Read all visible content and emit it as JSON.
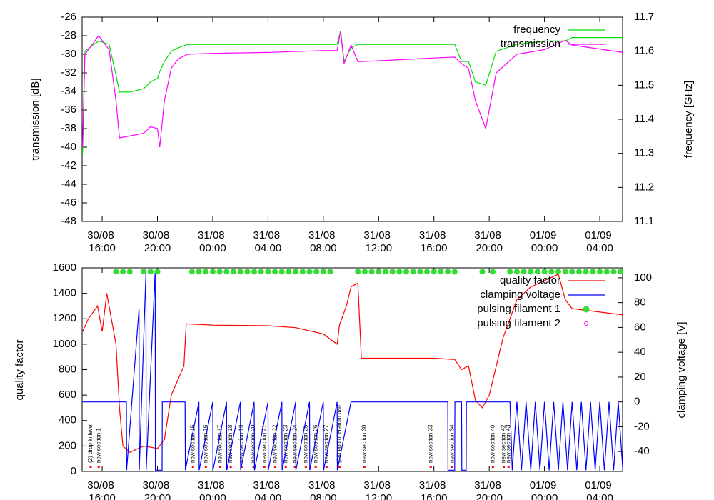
{
  "chart_data": [
    {
      "type": "line",
      "ylabel": "transmission [dB]",
      "y2label": "frequency [GHz]",
      "xlim": [
        "30/08 14:33",
        "01/09 05:39"
      ],
      "xticks": [
        "30/08 16:00",
        "30/08 20:00",
        "31/08 00:00",
        "31/08 04:00",
        "31/08 08:00",
        "31/08 12:00",
        "31/08 16:00",
        "31/08 20:00",
        "01/09 00:00",
        "01/09 04:00"
      ],
      "ylim": [
        -48,
        -26
      ],
      "yticks": [
        -48,
        -46,
        -44,
        -42,
        -40,
        -38,
        -36,
        -34,
        -32,
        -30,
        -28,
        -26
      ],
      "y2lim": [
        11.1,
        11.7
      ],
      "y2ticks": [
        11.1,
        11.2,
        11.3,
        11.4,
        11.5,
        11.6,
        11.7
      ],
      "legend": "top right",
      "x": [
        "30/08 14:35",
        "30/08 14:45",
        "30/08 15:45",
        "30/08 16:30",
        "30/08 17:00",
        "30/08 17:15",
        "30/08 18:00",
        "30/08 19:00",
        "30/08 19:30",
        "30/08 20:00",
        "30/08 20:10",
        "30/08 20:30",
        "30/08 21:00",
        "30/08 21:30",
        "30/08 22:10",
        "31/08 00:00",
        "31/08 04:00",
        "31/08 08:00",
        "31/08 09:00",
        "31/08 09:15",
        "31/08 09:30",
        "31/08 10:00",
        "31/08 10:30",
        "31/08 12:00",
        "31/08 16:00",
        "31/08 17:30",
        "31/08 18:00",
        "31/08 18:30",
        "31/08 19:00",
        "31/08 19:45",
        "31/08 20:30",
        "31/08 22:00",
        "01/09 00:00",
        "01/09 01:30",
        "01/09 02:00",
        "01/09 05:40"
      ],
      "series": [
        {
          "name": "frequency",
          "color": "#00e000",
          "axis": "y2",
          "mode": "line",
          "values": [
            11.3,
            11.6,
            11.63,
            11.62,
            11.53,
            11.48,
            11.48,
            11.49,
            11.51,
            11.52,
            11.54,
            11.57,
            11.6,
            11.61,
            11.62,
            11.62,
            11.62,
            11.62,
            11.62,
            11.66,
            11.57,
            11.61,
            11.62,
            11.62,
            11.62,
            11.62,
            11.57,
            11.57,
            11.51,
            11.5,
            11.6,
            11.62,
            11.63,
            11.63,
            11.64,
            11.64
          ]
        },
        {
          "name": "transmission",
          "color": "#ff00ff",
          "axis": "y",
          "mode": "line",
          "values": [
            -40,
            -30,
            -28,
            -29.5,
            -35,
            -39,
            -38.8,
            -38.5,
            -37.8,
            -38,
            -40,
            -35,
            -31.5,
            -30.5,
            -30,
            -29.9,
            -29.8,
            -29.6,
            -29.6,
            -27.5,
            -31,
            -29,
            -30.8,
            -30.7,
            -30.4,
            -30.3,
            -31,
            -31.5,
            -35,
            -38,
            -32,
            -30,
            -29.5,
            -28.5,
            -29,
            -29.8
          ]
        }
      ]
    },
    {
      "type": "line",
      "ylabel": "quality factor",
      "y2label": "clamping voltage [V]",
      "xlim": [
        "30/08 14:33",
        "01/09 05:39"
      ],
      "xticks": [
        "30/08 16:00",
        "30/08 20:00",
        "31/08 00:00",
        "31/08 04:00",
        "31/08 08:00",
        "31/08 12:00",
        "31/08 16:00",
        "31/08 20:00",
        "01/09 00:00",
        "01/09 04:00"
      ],
      "ylim": [
        0,
        1600
      ],
      "yticks": [
        0,
        200,
        400,
        600,
        800,
        1000,
        1200,
        1400,
        1600
      ],
      "y2lim": [
        -56,
        108
      ],
      "y2ticks": [
        -40,
        -20,
        0,
        20,
        40,
        60,
        80,
        100
      ],
      "legend": "top right",
      "series": [
        {
          "name": "quality factor",
          "color": "#ff0000",
          "axis": "y",
          "mode": "line",
          "x": [
            "30/08 14:35",
            "30/08 15:00",
            "30/08 15:40",
            "30/08 16:00",
            "30/08 16:20",
            "30/08 17:00",
            "30/08 17:15",
            "30/08 17:30",
            "30/08 18:00",
            "30/08 19:00",
            "30/08 20:00",
            "30/08 20:30",
            "30/08 21:00",
            "30/08 21:55",
            "30/08 22:05",
            "31/08 00:00",
            "31/08 04:00",
            "31/08 06:00",
            "31/08 08:00",
            "31/08 09:00",
            "31/08 09:10",
            "31/08 09:40",
            "31/08 10:00",
            "31/08 10:30",
            "31/08 10:45",
            "31/08 12:00",
            "31/08 16:00",
            "31/08 17:30",
            "31/08 18:00",
            "31/08 18:30",
            "31/08 19:00",
            "31/08 19:30",
            "31/08 20:00",
            "31/08 21:00",
            "31/08 22:00",
            "31/08 23:00",
            "01/09 00:00",
            "01/09 01:00",
            "01/09 01:30",
            "01/09 02:00",
            "01/09 05:40"
          ],
          "values": [
            1100,
            1200,
            1300,
            1100,
            1400,
            1000,
            500,
            200,
            150,
            200,
            180,
            250,
            600,
            830,
            1160,
            1150,
            1145,
            1130,
            1080,
            1000,
            1150,
            1300,
            1450,
            1480,
            890,
            890,
            890,
            880,
            800,
            830,
            560,
            500,
            600,
            1050,
            1350,
            1450,
            1500,
            1550,
            1350,
            1280,
            1230
          ]
        },
        {
          "name": "clamping voltage",
          "color": "#0000ff",
          "axis": "y2",
          "mode": "line",
          "x": [
            "30/08 14:35",
            "30/08 17:45",
            "30/08 17:46",
            "30/08 18:40",
            "30/08 18:41",
            "30/08 19:10",
            "30/08 19:11",
            "30/08 19:50",
            "30/08 19:51",
            "30/08 20:20",
            "30/08 20:21",
            "30/08 21:00",
            "30/08 22:00",
            "30/08 22:01",
            "30/08 23:00",
            "30/08 23:01",
            "31/08 00:00",
            "31/08 00:01",
            "31/08 01:00",
            "31/08 01:01",
            "31/08 02:00",
            "31/08 02:01",
            "31/08 03:00",
            "31/08 03:01",
            "31/08 04:00",
            "31/08 04:01",
            "31/08 05:00",
            "31/08 05:01",
            "31/08 06:00",
            "31/08 06:01",
            "31/08 07:00",
            "31/08 07:01",
            "31/08 08:00",
            "31/08 08:01",
            "31/08 09:00",
            "31/08 09:01",
            "31/08 10:00",
            "31/08 17:00",
            "31/08 17:01",
            "31/08 17:30",
            "31/08 17:31",
            "31/08 18:00",
            "31/08 18:01",
            "31/08 18:20",
            "31/08 18:21",
            "31/08 21:30",
            "31/08 21:40",
            "31/08 22:00",
            "31/08 22:20",
            "31/08 22:40",
            "31/08 23:00",
            "31/08 23:20",
            "31/08 23:40",
            "01/09 00:00",
            "01/09 00:20",
            "01/09 00:40",
            "01/09 01:00",
            "01/09 01:20",
            "01/09 01:40",
            "01/09 02:00",
            "01/09 02:20",
            "01/09 02:40",
            "01/09 03:00",
            "01/09 03:20",
            "01/09 03:40",
            "01/09 04:00",
            "01/09 04:20",
            "01/09 04:40",
            "01/09 05:00",
            "01/09 05:20",
            "01/09 05:40"
          ],
          "values": [
            0,
            0,
            -55,
            75,
            -55,
            105,
            -55,
            105,
            -55,
            -55,
            0,
            0,
            0,
            -55,
            0,
            -55,
            0,
            -55,
            0,
            -55,
            0,
            -55,
            0,
            -55,
            0,
            -55,
            0,
            -55,
            0,
            -55,
            0,
            -55,
            0,
            -55,
            0,
            -55,
            0,
            0,
            -55,
            -55,
            0,
            0,
            -55,
            -55,
            0,
            0,
            -55,
            0,
            -55,
            0,
            -55,
            0,
            -55,
            0,
            -55,
            0,
            -55,
            0,
            -55,
            0,
            -55,
            0,
            -55,
            0,
            -55,
            0,
            -55,
            0,
            -55,
            0,
            -55
          ]
        },
        {
          "name": "pulsing filament 1",
          "color": "#33dd33",
          "axis": "y",
          "mode": "points",
          "x": [
            "30/08 17:00",
            "30/08 17:30",
            "30/08 18:00",
            "30/08 19:00",
            "30/08 19:30",
            "30/08 20:00",
            "30/08 22:30",
            "30/08 23:00",
            "30/08 23:30",
            "31/08 00:00",
            "31/08 00:30",
            "31/08 01:00",
            "31/08 01:30",
            "31/08 02:00",
            "31/08 02:30",
            "31/08 03:00",
            "31/08 03:30",
            "31/08 04:00",
            "31/08 04:30",
            "31/08 05:00",
            "31/08 05:30",
            "31/08 06:00",
            "31/08 06:30",
            "31/08 07:00",
            "31/08 07:30",
            "31/08 08:00",
            "31/08 08:30",
            "31/08 10:30",
            "31/08 11:00",
            "31/08 11:30",
            "31/08 12:00",
            "31/08 12:30",
            "31/08 13:00",
            "31/08 13:30",
            "31/08 14:00",
            "31/08 14:30",
            "31/08 15:00",
            "31/08 15:30",
            "31/08 16:00",
            "31/08 16:30",
            "31/08 17:00",
            "31/08 17:30",
            "31/08 19:30",
            "31/08 20:15",
            "31/08 21:30",
            "31/08 22:00",
            "31/08 22:30",
            "31/08 23:00",
            "31/08 23:30",
            "01/09 00:00",
            "01/09 00:30",
            "01/09 01:00",
            "01/09 01:30",
            "01/09 02:00",
            "01/09 02:30",
            "01/09 03:00",
            "01/09 03:30",
            "01/09 04:00",
            "01/09 04:30",
            "01/09 05:00",
            "01/09 05:30"
          ],
          "values": [
            1570,
            1570,
            1570,
            1570,
            1570,
            1570,
            1570,
            1570,
            1570,
            1570,
            1570,
            1570,
            1570,
            1570,
            1570,
            1570,
            1570,
            1570,
            1570,
            1570,
            1570,
            1570,
            1570,
            1570,
            1570,
            1570,
            1570,
            1570,
            1570,
            1570,
            1570,
            1570,
            1570,
            1570,
            1570,
            1570,
            1570,
            1570,
            1570,
            1570,
            1570,
            1570,
            1570,
            1570,
            1570,
            1570,
            1570,
            1570,
            1570,
            1570,
            1570,
            1570,
            1570,
            1570,
            1570,
            1570,
            1570,
            1570,
            1570,
            1570,
            1570
          ]
        },
        {
          "name": "pulsing filament 2",
          "color": "#ff00ff",
          "axis": "y",
          "mode": "points",
          "x": [],
          "values": []
        }
      ],
      "annotations": [
        {
          "x": "30/08 15:10",
          "text": "(2) drop in level"
        },
        {
          "x": "30/08 15:45",
          "text": "new section 1"
        },
        {
          "x": "30/08 22:34",
          "text": "new section 15"
        },
        {
          "x": "30/08 23:30",
          "text": "new section 16"
        },
        {
          "x": "31/08 00:32",
          "text": "new section 17"
        },
        {
          "x": "31/08 01:18",
          "text": "new section 18"
        },
        {
          "x": "31/08 02:05",
          "text": "new section 19"
        },
        {
          "x": "31/08 02:57",
          "text": "new section 20"
        },
        {
          "x": "31/08 03:44",
          "text": "new section 21"
        },
        {
          "x": "31/08 04:31",
          "text": "new section 22"
        },
        {
          "x": "31/08 05:17",
          "text": "new section 23"
        },
        {
          "x": "31/08 05:57",
          "text": "new section 24"
        },
        {
          "x": "31/08 06:44",
          "text": "new section 25"
        },
        {
          "x": "31/08 07:27",
          "text": "new section 26"
        },
        {
          "x": "31/08 08:14",
          "text": "new section 27"
        },
        {
          "x": "31/08 09:10",
          "text": "(28) end of Helium bath"
        },
        {
          "x": "31/08 10:58",
          "text": "new section 30"
        },
        {
          "x": "31/08 15:46",
          "text": "new section 33"
        },
        {
          "x": "31/08 17:19",
          "text": "new section 34"
        },
        {
          "x": "31/08 20:16",
          "text": "new section 40"
        },
        {
          "x": "31/08 21:03",
          "text": "new section 42"
        },
        {
          "x": "31/08 21:24",
          "text": "new section 43"
        }
      ]
    }
  ]
}
